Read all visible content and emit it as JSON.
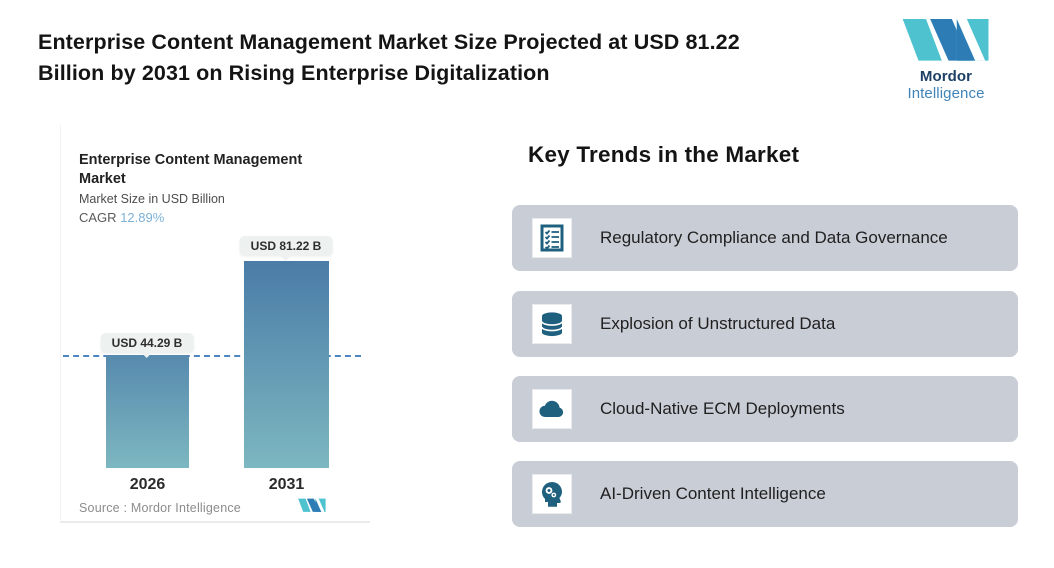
{
  "header": {
    "title_lines": [
      "Enterprise Content Management Market Size Projected at USD 81.22",
      "Billion by 2031 on Rising Enterprise Digitalization"
    ]
  },
  "brand": {
    "name_bold": "Mordor",
    "name_light": "Intelligence",
    "logo_teal": "#4ec3cf",
    "logo_blue": "#2d7cb5"
  },
  "chart": {
    "title_lines": [
      "Enterprise Content Management",
      "Market"
    ],
    "subtitle": "Market Size in USD Billion",
    "cagr_label": "CAGR",
    "cagr_value": "12.89%",
    "bars": [
      {
        "year": "2026",
        "label": "USD 44.29 B",
        "value": 44.29
      },
      {
        "year": "2031",
        "label": "USD 81.22 B",
        "value": 81.22
      }
    ],
    "source_label": "Source :",
    "source_value": "Mordor Intelligence"
  },
  "chart_data": {
    "type": "bar",
    "title": "Enterprise Content Management Market",
    "subtitle": "Market Size in USD Billion",
    "cagr": "12.89%",
    "categories": [
      "2026",
      "2031"
    ],
    "values": [
      44.29,
      81.22
    ],
    "data_labels": [
      "USD 44.29 B",
      "USD 81.22 B"
    ],
    "ylabel": "Market Size in USD Billion",
    "ylim": [
      0,
      81.22
    ],
    "reference_line": 44.29,
    "grid": false,
    "legend": "none",
    "bar_color_top": "#4a7ca7",
    "bar_color_bottom": "#7db7c0",
    "source": "Mordor Intelligence"
  },
  "trends": {
    "heading": "Key Trends in the Market",
    "items": [
      {
        "icon": "checklist-icon",
        "label": "Regulatory Compliance and Data Governance"
      },
      {
        "icon": "database-icon",
        "label": "Explosion of Unstructured Data"
      },
      {
        "icon": "cloud-icon",
        "label": "Cloud-Native ECM Deployments"
      },
      {
        "icon": "ai-head-icon",
        "label": "AI-Driven Content Intelligence"
      }
    ]
  },
  "colors": {
    "card_background": "#c9cdd6",
    "icon_teal": "#1f607f",
    "dashed_line": "#4d87c1",
    "cagr_accent": "#7cb1d8",
    "value_tag_background": "#edf2f0"
  }
}
